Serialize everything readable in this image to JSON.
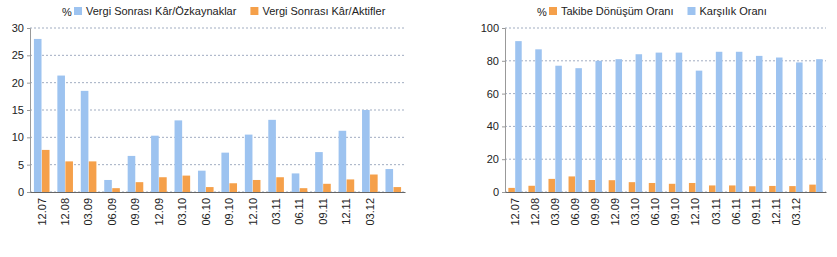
{
  "chart_data": [
    {
      "type": "bar",
      "ylabel": "%",
      "categories": [
        "12.07",
        "12.08",
        "03.09",
        "06.09",
        "09.09",
        "12.09",
        "03.10",
        "06.10",
        "09.10",
        "12.10",
        "03.11",
        "06.11",
        "09.11",
        "12.11",
        "03.12",
        null
      ],
      "series": [
        {
          "name": "Vergi Sonrası Kâr/Özkaynaklar",
          "color": "#9dc3f0",
          "values": [
            28,
            21.3,
            18.5,
            2.2,
            6.6,
            10.3,
            13.1,
            3.9,
            7.2,
            10.5,
            13.2,
            3.4,
            7.3,
            11.2,
            15,
            4.2
          ]
        },
        {
          "name": "Vergi Sonrası Kâr/Aktifler",
          "color": "#f5a04a",
          "values": [
            7.7,
            5.6,
            5.6,
            0.7,
            1.8,
            2.7,
            3,
            0.9,
            1.6,
            2.2,
            2.7,
            0.7,
            1.5,
            2.3,
            3.2,
            0.9
          ]
        }
      ],
      "ylim": [
        0,
        30
      ],
      "yticks": [
        0,
        5,
        10,
        15,
        20,
        25,
        30
      ],
      "grid": true,
      "legend": "top"
    },
    {
      "type": "bar",
      "ylabel": "%",
      "categories": [
        "12.07",
        "12.08",
        "03.09",
        "06.09",
        "09.09",
        "12.09",
        "03.10",
        "06.10",
        "09.10",
        "12.10",
        "03.11",
        "06.11",
        "09.11",
        "12.11",
        "03.12",
        null
      ],
      "series": [
        {
          "name": "Takibe Dönüşüm Oranı",
          "color": "#f5a04a",
          "values": [
            2.5,
            3.8,
            8,
            9.5,
            7.3,
            7.2,
            6,
            5.5,
            5,
            5.5,
            4,
            4,
            3.5,
            3.7,
            3.6,
            4.5
          ]
        },
        {
          "name": "Karşılık Oranı",
          "color": "#9dc3f0",
          "values": [
            92,
            87,
            77,
            75.5,
            80,
            81,
            84,
            85,
            85,
            74,
            85.5,
            85.5,
            83,
            82,
            79,
            81
          ]
        }
      ],
      "ylim": [
        0,
        100
      ],
      "yticks": [
        0,
        20,
        40,
        60,
        80,
        100
      ],
      "grid": true,
      "legend": "top"
    }
  ]
}
